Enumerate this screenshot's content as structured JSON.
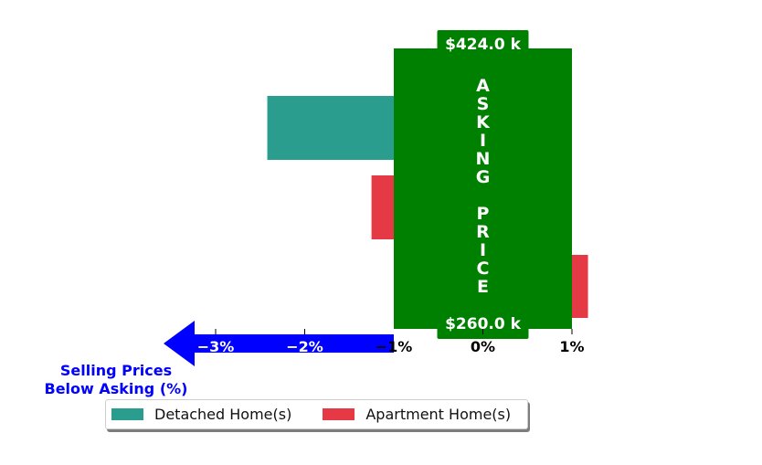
{
  "chart_data": {
    "type": "bar",
    "orientation": "horizontal",
    "xlim": [
      -3.9,
      1.25
    ],
    "xticks": [
      -3,
      -2,
      -1,
      0,
      1
    ],
    "xtick_labels": [
      "−3%",
      "−2%",
      "−1%",
      "0%",
      "1%"
    ],
    "series": [
      {
        "name": "Detached Home(s)",
        "color": "#2a9d8f",
        "value": -2.42
      },
      {
        "name": "Apartment Home(s)",
        "color": "#e63946",
        "value": -1.25
      },
      {
        "name": "",
        "color": "#e63946",
        "value": 1.18
      }
    ],
    "band": {
      "color": "#008000",
      "from": -1,
      "to": 1,
      "label": "ASKING PRICE",
      "top_label": "$424.0 k",
      "bottom_label": "$260.0 k"
    },
    "arrow": {
      "color": "#0000ff",
      "direction": "left",
      "text": [
        "Selling Prices",
        "Below Asking (%)"
      ]
    },
    "legend": {
      "placement": "bottom-left",
      "entries": [
        {
          "label": "Detached Home(s)",
          "color": "#2a9d8f"
        },
        {
          "label": "Apartment Home(s)",
          "color": "#e63946"
        }
      ]
    }
  }
}
